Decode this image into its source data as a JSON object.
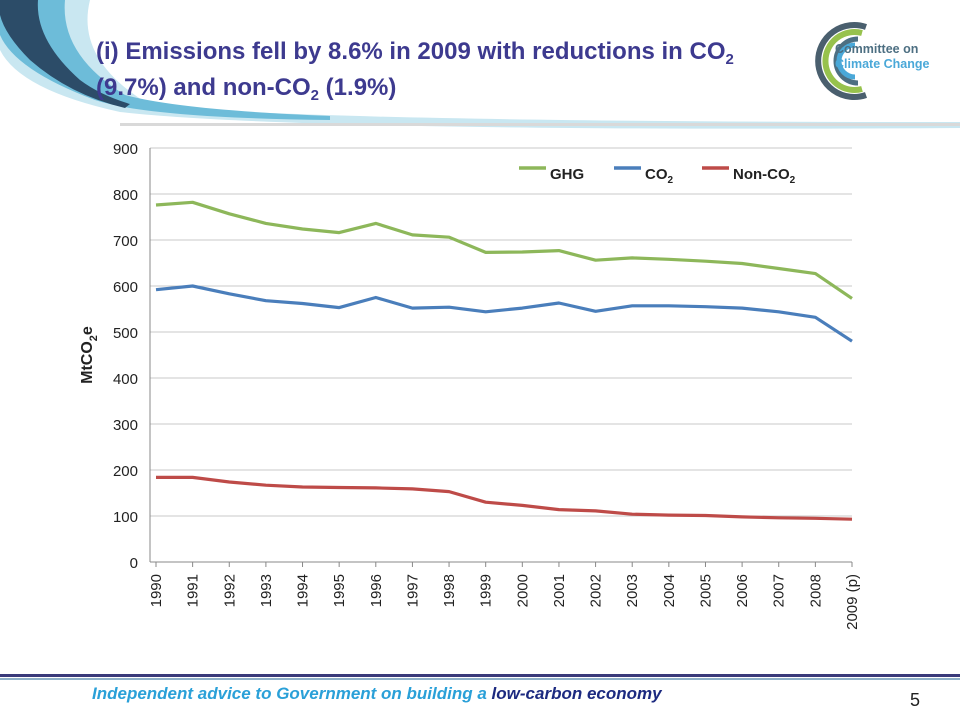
{
  "slide": {
    "title_part1": "(i) Emissions fell by 8.6% in 2009 with reductions in CO",
    "title_sub1": "2",
    "title_part2": " (9.7%) and non-CO",
    "title_sub2": "2",
    "title_part3": " (1.9%)",
    "page_number": "5"
  },
  "logo": {
    "line1": "Committee on",
    "line2": "Climate Change"
  },
  "footer": {
    "part1": "Independent advice to Government on building a ",
    "part2": "low-carbon economy"
  },
  "colors": {
    "title": "#3d3a8f",
    "ghg": "#8db75a",
    "co2": "#4a7ebb",
    "nonco2": "#be4b48"
  },
  "chart_data": {
    "type": "line",
    "x": [
      "1990",
      "1991",
      "1992",
      "1993",
      "1994",
      "1995",
      "1996",
      "1997",
      "1998",
      "1999",
      "2000",
      "2001",
      "2002",
      "2003",
      "2004",
      "2005",
      "2006",
      "2007",
      "2008",
      "2009 (p)"
    ],
    "series": [
      {
        "name": "GHG",
        "color": "#8db75a",
        "values": [
          776,
          782,
          757,
          736,
          724,
          716,
          736,
          711,
          706,
          673,
          674,
          677,
          656,
          661,
          658,
          654,
          649,
          638,
          627,
          573
        ]
      },
      {
        "name": "CO",
        "name_sub": "2",
        "color": "#4a7ebb",
        "values": [
          592,
          600,
          583,
          568,
          562,
          553,
          575,
          552,
          554,
          544,
          552,
          563,
          545,
          557,
          557,
          555,
          552,
          544,
          532,
          480
        ]
      },
      {
        "name": "Non-CO",
        "name_sub": "2",
        "color": "#be4b48",
        "values": [
          184,
          184,
          174,
          167,
          163,
          162,
          161,
          159,
          153,
          130,
          123,
          114,
          111,
          104,
          102,
          101,
          98,
          96,
          95,
          93
        ]
      }
    ],
    "ylabel": "MtCO",
    "ylabel_sub": "2",
    "ylabel_suffix": "e",
    "ylim": [
      0,
      900
    ],
    "yticks": [
      0,
      100,
      200,
      300,
      400,
      500,
      600,
      700,
      800,
      900
    ],
    "grid": true,
    "legend_position": "top-right"
  }
}
